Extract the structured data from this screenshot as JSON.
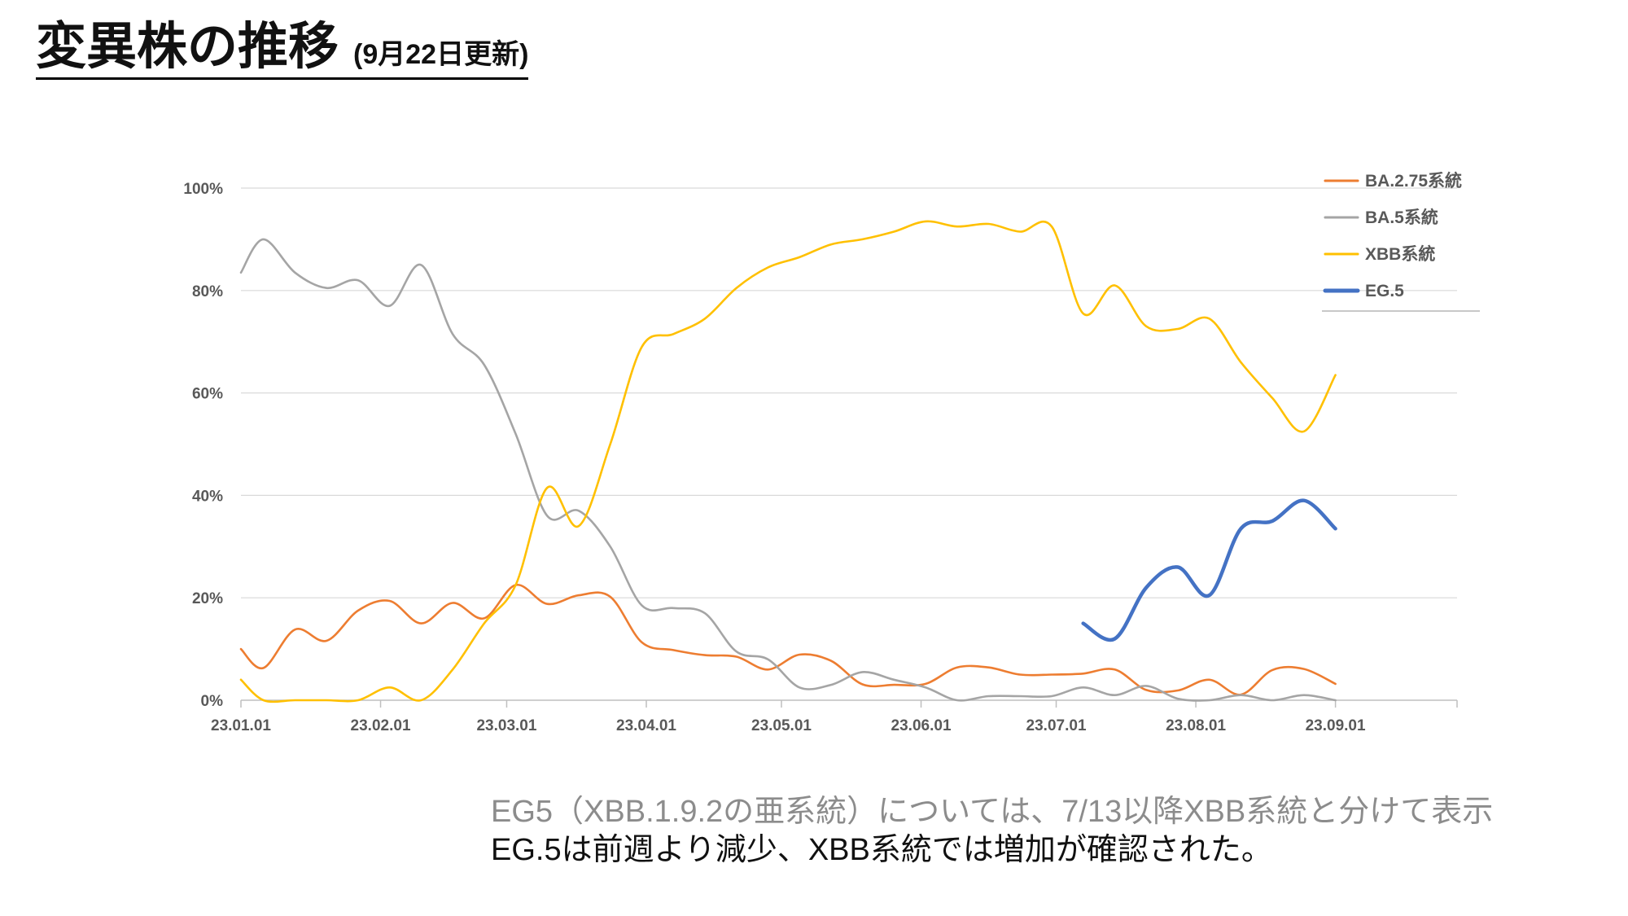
{
  "title": {
    "main": "変異株の推移",
    "sub": "(9月22日更新)"
  },
  "notes": {
    "line1": "EG5（XBB.1.9.2の亜系統）については、7/13以降XBB系統と分けて表示",
    "line2": "EG.5は前週より減少、XBB系統では増加が確認された。"
  },
  "chart_data": {
    "type": "line",
    "x_axis_type": "date",
    "x_ticks": [
      "23.01.01",
      "23.02.01",
      "23.03.01",
      "23.04.01",
      "23.05.01",
      "23.06.01",
      "23.07.01",
      "23.08.01",
      "23.09.01"
    ],
    "y_ticks": [
      "0%",
      "20%",
      "40%",
      "60%",
      "80%",
      "100%"
    ],
    "ylim": [
      0,
      100
    ],
    "xlim": [
      "2023-01-01",
      "2023-09-28"
    ],
    "grid": "horizontal",
    "legend_position": "top-right",
    "series": [
      {
        "name": "BA.2.75系統",
        "color": "#ED7D31",
        "width": "thin",
        "points": [
          [
            "2023-01-01",
            10.0
          ],
          [
            "2023-01-06",
            6.3
          ],
          [
            "2023-01-13",
            13.8
          ],
          [
            "2023-01-20",
            11.6
          ],
          [
            "2023-01-27",
            17.5
          ],
          [
            "2023-02-03",
            19.4
          ],
          [
            "2023-02-10",
            15.0
          ],
          [
            "2023-02-17",
            19.0
          ],
          [
            "2023-02-24",
            16.0
          ],
          [
            "2023-03-03",
            22.5
          ],
          [
            "2023-03-10",
            18.8
          ],
          [
            "2023-03-17",
            20.5
          ],
          [
            "2023-03-24",
            20.2
          ],
          [
            "2023-03-31",
            11.3
          ],
          [
            "2023-04-07",
            9.8
          ],
          [
            "2023-04-14",
            8.8
          ],
          [
            "2023-04-21",
            8.5
          ],
          [
            "2023-04-28",
            6.0
          ],
          [
            "2023-05-05",
            8.9
          ],
          [
            "2023-05-12",
            7.7
          ],
          [
            "2023-05-19",
            3.1
          ],
          [
            "2023-05-26",
            3.0
          ],
          [
            "2023-06-02",
            3.2
          ],
          [
            "2023-06-09",
            6.4
          ],
          [
            "2023-06-16",
            6.4
          ],
          [
            "2023-06-23",
            5.0
          ],
          [
            "2023-06-30",
            5.0
          ],
          [
            "2023-07-07",
            5.2
          ],
          [
            "2023-07-14",
            6.0
          ],
          [
            "2023-07-21",
            2.0
          ],
          [
            "2023-07-28",
            1.9
          ],
          [
            "2023-08-04",
            4.0
          ],
          [
            "2023-08-11",
            1.1
          ],
          [
            "2023-08-18",
            5.9
          ],
          [
            "2023-08-25",
            6.1
          ],
          [
            "2023-09-01",
            3.2
          ]
        ]
      },
      {
        "name": "BA.5系統",
        "color": "#A5A5A5",
        "width": "thin",
        "points": [
          [
            "2023-01-01",
            83.5
          ],
          [
            "2023-01-06",
            90.0
          ],
          [
            "2023-01-13",
            83.5
          ],
          [
            "2023-01-20",
            80.5
          ],
          [
            "2023-01-27",
            82.0
          ],
          [
            "2023-02-03",
            77.0
          ],
          [
            "2023-02-10",
            85.0
          ],
          [
            "2023-02-17",
            71.5
          ],
          [
            "2023-02-24",
            65.5
          ],
          [
            "2023-03-03",
            52.0
          ],
          [
            "2023-03-10",
            36.0
          ],
          [
            "2023-03-17",
            37.0
          ],
          [
            "2023-03-24",
            30.0
          ],
          [
            "2023-03-31",
            18.5
          ],
          [
            "2023-04-07",
            18.0
          ],
          [
            "2023-04-14",
            17.0
          ],
          [
            "2023-04-21",
            9.5
          ],
          [
            "2023-04-28",
            8.0
          ],
          [
            "2023-05-05",
            2.5
          ],
          [
            "2023-05-12",
            3.0
          ],
          [
            "2023-05-19",
            5.5
          ],
          [
            "2023-05-26",
            4.0
          ],
          [
            "2023-06-02",
            2.5
          ],
          [
            "2023-06-09",
            0.0
          ],
          [
            "2023-06-16",
            0.8
          ],
          [
            "2023-06-23",
            0.8
          ],
          [
            "2023-06-30",
            0.8
          ],
          [
            "2023-07-07",
            2.5
          ],
          [
            "2023-07-14",
            1.0
          ],
          [
            "2023-07-21",
            2.8
          ],
          [
            "2023-07-28",
            0.3
          ],
          [
            "2023-08-04",
            0.0
          ],
          [
            "2023-08-11",
            1.0
          ],
          [
            "2023-08-18",
            0.0
          ],
          [
            "2023-08-25",
            1.0
          ],
          [
            "2023-09-01",
            0.0
          ]
        ]
      },
      {
        "name": "XBB系統",
        "color": "#FFC000",
        "width": "thin",
        "points": [
          [
            "2023-01-01",
            4.0
          ],
          [
            "2023-01-06",
            0.0
          ],
          [
            "2023-01-13",
            0.0
          ],
          [
            "2023-01-20",
            0.0
          ],
          [
            "2023-01-27",
            0.0
          ],
          [
            "2023-02-03",
            2.5
          ],
          [
            "2023-02-10",
            0.0
          ],
          [
            "2023-02-17",
            6.0
          ],
          [
            "2023-02-24",
            15.0
          ],
          [
            "2023-03-03",
            22.5
          ],
          [
            "2023-03-10",
            41.5
          ],
          [
            "2023-03-17",
            34.0
          ],
          [
            "2023-03-24",
            50.0
          ],
          [
            "2023-03-31",
            69.0
          ],
          [
            "2023-04-07",
            71.5
          ],
          [
            "2023-04-14",
            74.5
          ],
          [
            "2023-04-21",
            80.5
          ],
          [
            "2023-04-28",
            84.5
          ],
          [
            "2023-05-05",
            86.5
          ],
          [
            "2023-05-12",
            89.0
          ],
          [
            "2023-05-19",
            90.0
          ],
          [
            "2023-05-26",
            91.5
          ],
          [
            "2023-06-02",
            93.5
          ],
          [
            "2023-06-09",
            92.5
          ],
          [
            "2023-06-16",
            93.0
          ],
          [
            "2023-06-23",
            91.5
          ],
          [
            "2023-06-30",
            92.5
          ],
          [
            "2023-07-07",
            75.5
          ],
          [
            "2023-07-14",
            81.0
          ],
          [
            "2023-07-21",
            73.0
          ],
          [
            "2023-07-28",
            72.5
          ],
          [
            "2023-08-04",
            74.5
          ],
          [
            "2023-08-11",
            66.0
          ],
          [
            "2023-08-18",
            59.0
          ],
          [
            "2023-08-25",
            52.5
          ],
          [
            "2023-09-01",
            63.5
          ]
        ]
      },
      {
        "name": "EG.5",
        "color": "#4472C4",
        "width": "thick",
        "points": [
          [
            "2023-07-07",
            15.0
          ],
          [
            "2023-07-14",
            12.0
          ],
          [
            "2023-07-21",
            22.0
          ],
          [
            "2023-07-28",
            26.0
          ],
          [
            "2023-08-04",
            20.5
          ],
          [
            "2023-08-11",
            33.5
          ],
          [
            "2023-08-18",
            35.0
          ],
          [
            "2023-08-25",
            39.0
          ],
          [
            "2023-09-01",
            33.5
          ]
        ]
      }
    ]
  }
}
